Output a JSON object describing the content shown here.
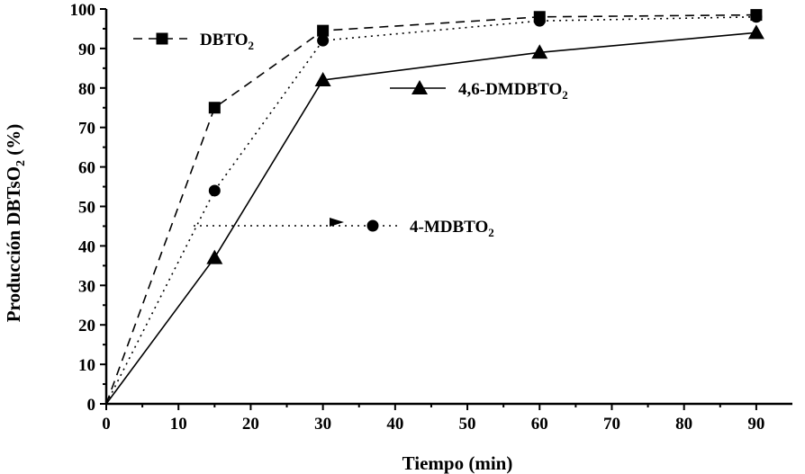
{
  "chart_data": {
    "type": "line",
    "title": "",
    "xlabel": "Tiempo (min)",
    "ylabel_main": "Producción DBTsO",
    "ylabel_sub": "2",
    "ylabel_tail": " (%)",
    "xlim": [
      0,
      95
    ],
    "ylim": [
      0,
      100
    ],
    "xticks": [
      0,
      10,
      20,
      30,
      40,
      50,
      60,
      70,
      80,
      90
    ],
    "yticks": [
      0,
      10,
      20,
      30,
      40,
      50,
      60,
      70,
      80,
      90,
      100
    ],
    "grid": false,
    "series": [
      {
        "name_main": "DBTO",
        "name_sub": "2",
        "marker": "square",
        "dash": "dashed",
        "x": [
          0,
          15,
          30,
          60,
          90
        ],
        "y": [
          0,
          75,
          94.5,
          98,
          98.5
        ]
      },
      {
        "name_main": "4,6-DMDBTO",
        "name_sub": "2",
        "marker": "triangle",
        "dash": "solid",
        "x": [
          0,
          15,
          30,
          60,
          90
        ],
        "y": [
          0,
          37,
          82,
          89,
          94
        ]
      },
      {
        "name_main": "4-MDBTO",
        "name_sub": "2",
        "marker": "circle",
        "dash": "dotted",
        "x": [
          0,
          15,
          30,
          60,
          90
        ],
        "y": [
          0,
          54,
          92,
          97,
          98
        ]
      }
    ]
  }
}
